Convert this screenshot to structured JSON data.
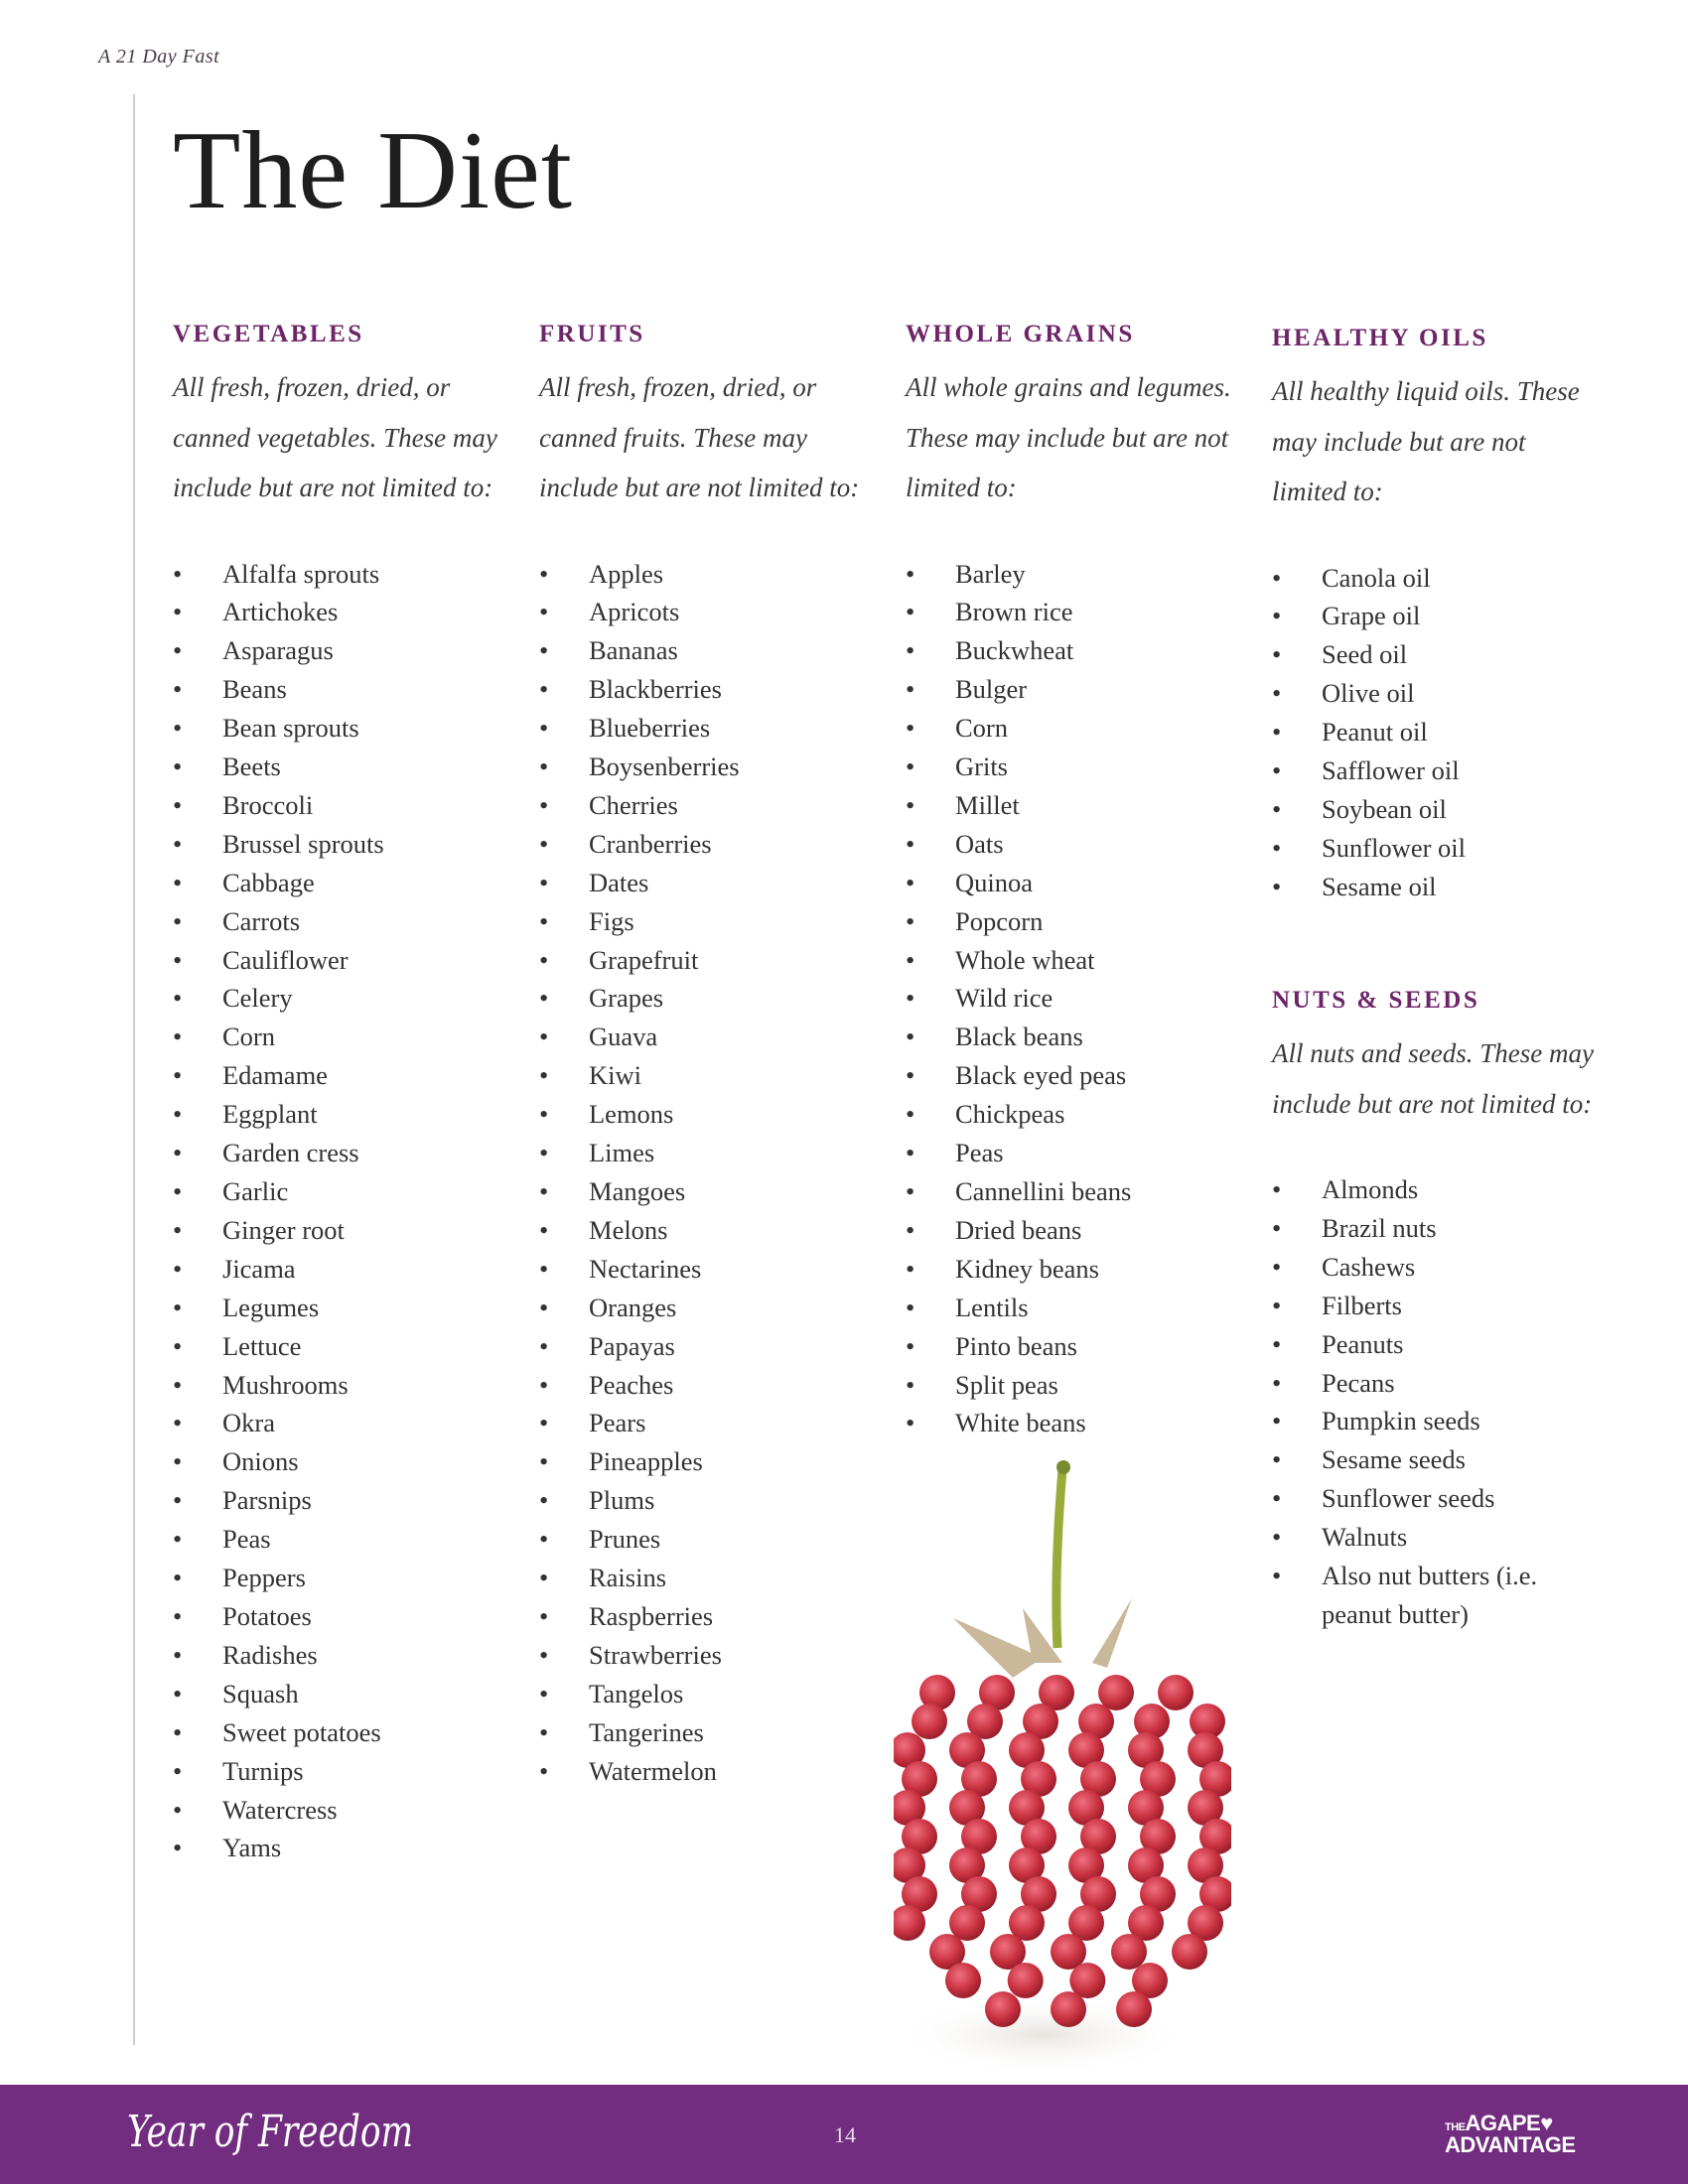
{
  "header": {
    "running_title": "A 21 Day Fast",
    "title": "The Diet"
  },
  "columns": [
    {
      "id": "vegetables",
      "heading": "VEGETABLES",
      "description": "All fresh, frozen, dried, or canned vegetables. These may include but are not limited to:",
      "items": [
        "Alfalfa sprouts",
        "Artichokes",
        "Asparagus",
        "Beans",
        "Bean sprouts",
        "Beets",
        "Broccoli",
        "Brussel sprouts",
        "Cabbage",
        "Carrots",
        "Cauliflower",
        "Celery",
        "Corn",
        "Edamame",
        "Eggplant",
        "Garden cress",
        "Garlic",
        "Ginger root",
        "Jicama",
        "Legumes",
        "Lettuce",
        "Mushrooms",
        "Okra",
        "Onions",
        "Parsnips",
        "Peas",
        "Peppers",
        "Potatoes",
        "Radishes",
        "Squash",
        "Sweet potatoes",
        "Turnips",
        "Watercress",
        "Yams"
      ]
    },
    {
      "id": "fruits",
      "heading": "FRUITS",
      "description": "All fresh, frozen, dried, or canned fruits. These may include but are not limited to:",
      "items": [
        "Apples",
        "Apricots",
        "Bananas",
        "Blackberries",
        "Blueberries",
        "Boysenberries",
        "Cherries",
        "Cranberries",
        "Dates",
        "Figs",
        "Grapefruit",
        "Grapes",
        "Guava",
        "Kiwi",
        "Lemons",
        "Limes",
        "Mangoes",
        "Melons",
        "Nectarines",
        "Oranges",
        "Papayas",
        "Peaches",
        "Pears",
        "Pineapples",
        "Plums",
        "Prunes",
        "Raisins",
        "Raspberries",
        "Strawberries",
        "Tangelos",
        "Tangerines",
        "Watermelon"
      ]
    },
    {
      "id": "whole-grains",
      "heading": "WHOLE GRAINS",
      "description": "All whole grains and legumes. These may include but are not limited to:",
      "items": [
        "Barley",
        "Brown rice",
        "Buckwheat",
        "Bulger",
        "Corn",
        "Grits",
        "Millet",
        "Oats",
        "Quinoa",
        "Popcorn",
        "Whole wheat",
        "Wild rice",
        "Black beans",
        "Black eyed peas",
        "Chickpeas",
        "Peas",
        "Cannellini beans",
        "Dried beans",
        "Kidney beans",
        "Lentils",
        "Pinto beans",
        "Split peas",
        "White beans"
      ]
    },
    {
      "id": "healthy-oils",
      "heading": "HEALTHY OILS",
      "description": "All healthy liquid oils. These may include but are not limited to:",
      "items": [
        "Canola oil",
        "Grape oil",
        "Seed oil",
        "Olive oil",
        "Peanut oil",
        "Safflower oil",
        "Soybean oil",
        "Sunflower oil",
        "Sesame oil"
      ]
    },
    {
      "id": "nuts-seeds",
      "heading": "NUTS & SEEDS",
      "description": "All nuts and seeds. These may include but are not limited to:",
      "items": [
        "Almonds",
        "Brazil nuts",
        "Cashews",
        "Filberts",
        "Peanuts",
        "Pecans",
        "Pumpkin seeds",
        "Sesame seeds",
        "Sunflower seeds",
        "Walnuts",
        "Also nut butters (i.e. peanut butter)"
      ]
    }
  ],
  "bullet": "•",
  "footer": {
    "signature": "Year of Freedom",
    "page_number": "14",
    "logo_line1_small": "THE",
    "logo_line1": "AGAPE",
    "logo_line2": "ADVANTAGE",
    "color": "#722d80"
  },
  "colors": {
    "heading": "#6e2468",
    "berry": "#c8313f"
  }
}
